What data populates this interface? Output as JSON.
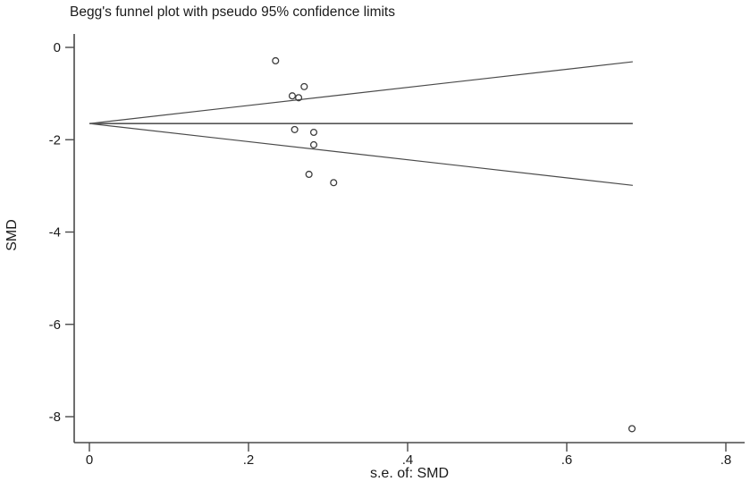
{
  "chart_data": {
    "type": "scatter",
    "subtype": "beggs-funnel-plot",
    "title": "Begg's funnel plot with pseudo 95% confidence limits",
    "xlabel": "s.e. of: SMD",
    "ylabel": "SMD",
    "x_ticks": {
      "values": [
        0,
        0.2,
        0.4,
        0.6,
        0.8
      ],
      "labels": [
        "0",
        ".2",
        ".4",
        ".6",
        ".8"
      ]
    },
    "y_ticks": {
      "values": [
        0,
        -2,
        -4,
        -6,
        -8
      ],
      "labels": [
        "0",
        "-2",
        "-4",
        "-6",
        "-8"
      ]
    },
    "xlim": [
      -0.02,
      0.83
    ],
    "ylim": [
      -8.85,
      0.3
    ],
    "grid": false,
    "legend": null,
    "funnel": {
      "center_smd": -1.65,
      "z": 1.96,
      "se_start": 0,
      "se_end": 0.683
    },
    "points": [
      {
        "se": 0.234,
        "smd": -0.29
      },
      {
        "se": 0.27,
        "smd": -0.85
      },
      {
        "se": 0.255,
        "smd": -1.05
      },
      {
        "se": 0.263,
        "smd": -1.09
      },
      {
        "se": 0.258,
        "smd": -1.78
      },
      {
        "se": 0.282,
        "smd": -1.84
      },
      {
        "se": 0.282,
        "smd": -2.11
      },
      {
        "se": 0.276,
        "smd": -2.75
      },
      {
        "se": 0.307,
        "smd": -2.93
      },
      {
        "se": 0.682,
        "smd": -8.26
      }
    ],
    "colors": {
      "line": "#4a4a4a",
      "center_line": "#555555",
      "marker_stroke": "#3d3d3d",
      "axis": "#4a4a4a",
      "text": "#1a1a1a",
      "background": "#ffffff"
    }
  }
}
